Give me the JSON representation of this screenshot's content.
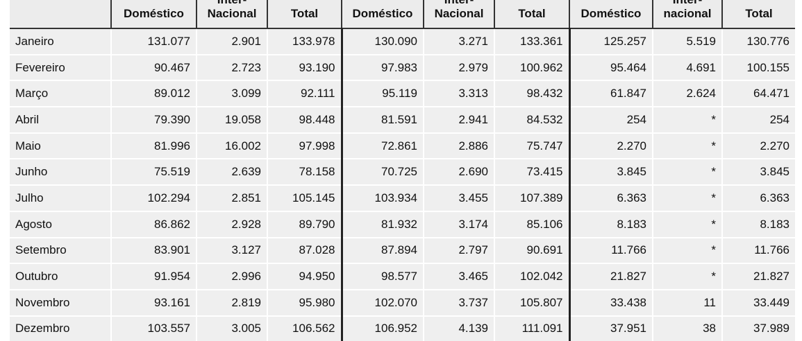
{
  "headers": {
    "domestico": "Doméstico",
    "inter_line1": "Inter-",
    "inter_line2": "Nacional",
    "inter_line2_lower": "nacional",
    "total": "Total"
  },
  "rows": [
    {
      "month": "Janeiro",
      "v": [
        "131.077",
        "2.901",
        "133.978",
        "130.090",
        "3.271",
        "133.361",
        "125.257",
        "5.519",
        "130.776"
      ]
    },
    {
      "month": "Fevereiro",
      "v": [
        "90.467",
        "2.723",
        "93.190",
        "97.983",
        "2.979",
        "100.962",
        "95.464",
        "4.691",
        "100.155"
      ]
    },
    {
      "month": "Março",
      "v": [
        "89.012",
        "3.099",
        "92.111",
        "95.119",
        "3.313",
        "98.432",
        "61.847",
        "2.624",
        "64.471"
      ]
    },
    {
      "month": "Abril",
      "v": [
        "79.390",
        "19.058",
        "98.448",
        "81.591",
        "2.941",
        "84.532",
        "254",
        "*",
        "254"
      ]
    },
    {
      "month": "Maio",
      "v": [
        "81.996",
        "16.002",
        "97.998",
        "72.861",
        "2.886",
        "75.747",
        "2.270",
        "*",
        "2.270"
      ]
    },
    {
      "month": "Junho",
      "v": [
        "75.519",
        "2.639",
        "78.158",
        "70.725",
        "2.690",
        "73.415",
        "3.845",
        "*",
        "3.845"
      ]
    },
    {
      "month": "Julho",
      "v": [
        "102.294",
        "2.851",
        "105.145",
        "103.934",
        "3.455",
        "107.389",
        "6.363",
        "*",
        "6.363"
      ]
    },
    {
      "month": "Agosto",
      "v": [
        "86.862",
        "2.928",
        "89.790",
        "81.932",
        "3.174",
        "85.106",
        "8.183",
        "*",
        "8.183"
      ]
    },
    {
      "month": "Setembro",
      "v": [
        "83.901",
        "3.127",
        "87.028",
        "87.894",
        "2.797",
        "90.691",
        "11.766",
        "*",
        "11.766"
      ]
    },
    {
      "month": "Outubro",
      "v": [
        "91.954",
        "2.996",
        "94.950",
        "98.577",
        "3.465",
        "102.042",
        "21.827",
        "*",
        "21.827"
      ]
    },
    {
      "month": "Novembro",
      "v": [
        "93.161",
        "2.819",
        "95.980",
        "102.070",
        "3.737",
        "105.807",
        "33.438",
        "11",
        "33.449"
      ]
    },
    {
      "month": "Dezembro",
      "v": [
        "103.557",
        "3.005",
        "106.562",
        "106.952",
        "4.139",
        "111.091",
        "37.951",
        "38",
        "37.989"
      ]
    }
  ]
}
